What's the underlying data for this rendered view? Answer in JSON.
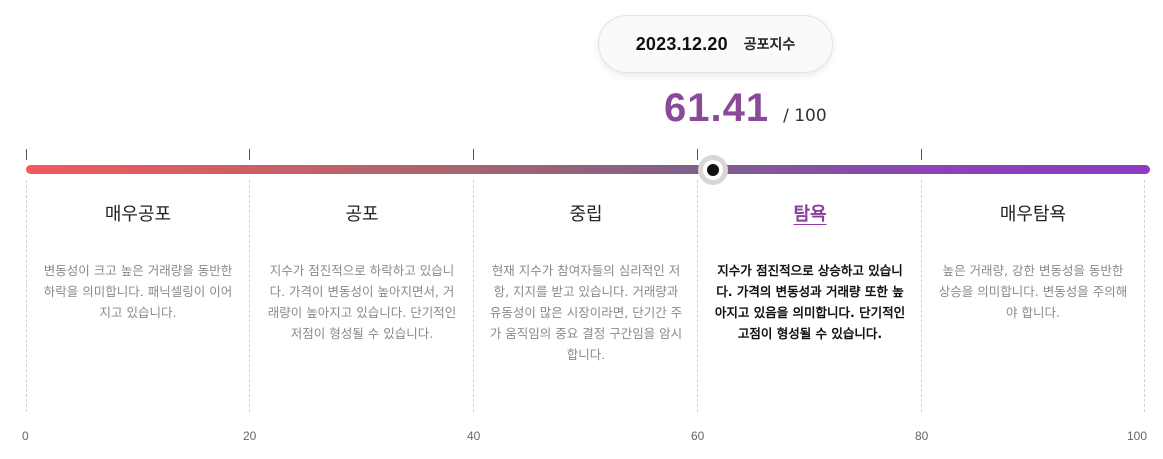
{
  "tooltip": {
    "date": "2023.12.20",
    "label": "공포지수"
  },
  "score": {
    "value": "61.41",
    "max_label": "/ 100"
  },
  "gauge": {
    "value": 61.41,
    "min": 0,
    "max": 100,
    "colors": {
      "start": "#f25a5c",
      "end": "#8b3cc2",
      "score": "#8a4a9a",
      "active_title": "#8a3f9a"
    }
  },
  "zones": [
    {
      "title": "매우공포",
      "description": "변동성이 크고 높은 거래량을 동반한 하락을 의미합니다. 패닉셀링이 이어지고 있습니다."
    },
    {
      "title": "공포",
      "description": "지수가 점진적으로 하락하고 있습니다. 가격이 변동성이 높아지면서, 거래량이 높아지고 있습니다. 단기적인 저점이 형성될 수 있습니다."
    },
    {
      "title": "중립",
      "description": "현재 지수가 참여자들의 심리적인 저항, 지지를 받고 있습니다. 거래량과 유동성이 많은 시장이라면, 단기간 주가 움직임의 중요 결정 구간임을 암시합니다."
    },
    {
      "title": "탐욕",
      "description": "지수가 점진적으로 상승하고 있습니다. 가격의 변동성과 거래량 또한 높아지고 있음을 의미합니다. 단기적인 고점이 형성될 수 있습니다.",
      "active": true
    },
    {
      "title": "매우탐욕",
      "description": "높은 거래량, 강한 변동성을 동반한 상승을 의미합니다. 변동성을 주의해야 합니다."
    }
  ],
  "axis": {
    "labels": [
      "0",
      "20",
      "40",
      "60",
      "80",
      "100"
    ]
  }
}
